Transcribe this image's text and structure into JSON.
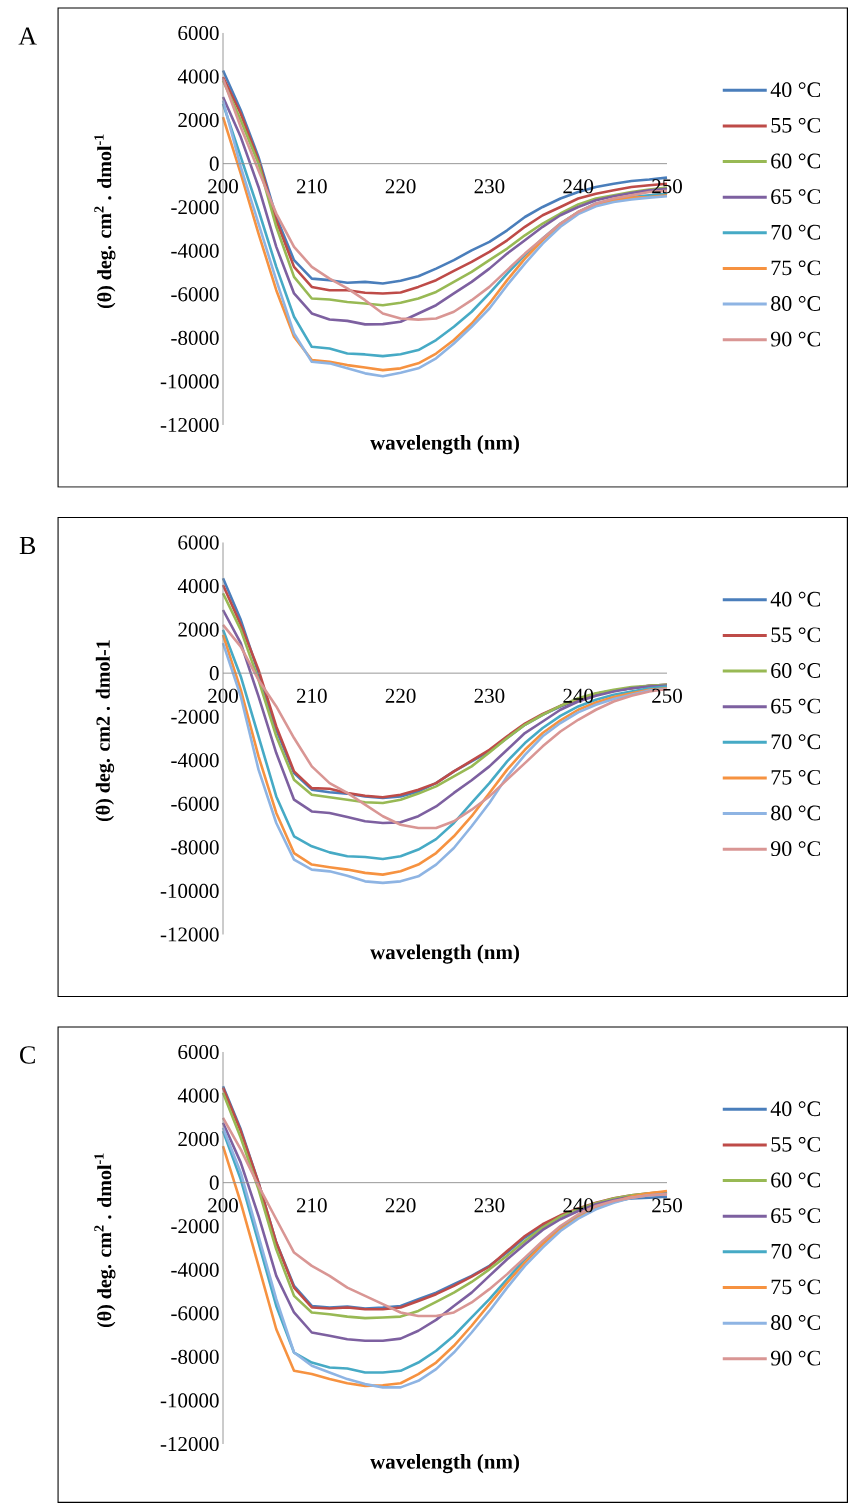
{
  "chart_data": [
    {
      "type": "line",
      "title": "A",
      "xlabel": "wavelength (nm)",
      "ylabel": "(θ) deg. cm$^{2}$ . dmol$^{-1}$",
      "legend": "right",
      "x": [
        200,
        202,
        204,
        206,
        208,
        210,
        212,
        214,
        216,
        218,
        220,
        222,
        224,
        226,
        228,
        230,
        232,
        234,
        236,
        238,
        240,
        242,
        244,
        246,
        248,
        250
      ],
      "xlim": [
        200,
        250
      ],
      "xticks": [
        200,
        210,
        220,
        230,
        240,
        250
      ],
      "ylim": [
        -12000,
        6000
      ],
      "yticks": [
        -12000,
        -10000,
        -8000,
        -6000,
        -4000,
        -2000,
        0,
        2000,
        4000,
        6000
      ],
      "series": [
        {
          "name": "40 °C",
          "color": "#4a7ebb",
          "values": [
            4280,
            2450,
            300,
            -2450,
            -4430,
            -5280,
            -5350,
            -5470,
            -5430,
            -5500,
            -5380,
            -5170,
            -4820,
            -4430,
            -3980,
            -3590,
            -3060,
            -2450,
            -1990,
            -1600,
            -1300,
            -1070,
            -920,
            -800,
            -730,
            -640
          ]
        },
        {
          "name": "55 °C",
          "color": "#be4b48",
          "values": [
            3980,
            2290,
            150,
            -2600,
            -4740,
            -5660,
            -5810,
            -5810,
            -5930,
            -5960,
            -5920,
            -5660,
            -5350,
            -4920,
            -4510,
            -4050,
            -3520,
            -2900,
            -2370,
            -1990,
            -1600,
            -1380,
            -1220,
            -1070,
            -990,
            -920
          ]
        },
        {
          "name": "60 °C",
          "color": "#98b954",
          "values": [
            3820,
            1990,
            0,
            -2900,
            -5200,
            -6190,
            -6240,
            -6350,
            -6420,
            -6500,
            -6390,
            -6190,
            -5890,
            -5430,
            -4970,
            -4430,
            -3900,
            -3290,
            -2750,
            -2290,
            -1870,
            -1600,
            -1450,
            -1300,
            -1190,
            -1100
          ]
        },
        {
          "name": "65 °C",
          "color": "#7d60a0",
          "values": [
            3060,
            1220,
            -1070,
            -3820,
            -5960,
            -6880,
            -7160,
            -7220,
            -7380,
            -7370,
            -7260,
            -6880,
            -6500,
            -5960,
            -5430,
            -4820,
            -4130,
            -3520,
            -2900,
            -2370,
            -1990,
            -1680,
            -1500,
            -1350,
            -1220,
            -1150
          ]
        },
        {
          "name": "70 °C",
          "color": "#46aac5",
          "values": [
            2750,
            310,
            -2140,
            -4740,
            -7030,
            -8410,
            -8490,
            -8720,
            -8760,
            -8840,
            -8750,
            -8560,
            -8100,
            -7490,
            -6800,
            -5960,
            -5050,
            -4200,
            -3440,
            -2750,
            -2220,
            -1830,
            -1650,
            -1530,
            -1450,
            -1380
          ]
        },
        {
          "name": "75 °C",
          "color": "#f69240",
          "values": [
            2140,
            -460,
            -3210,
            -5810,
            -7950,
            -9020,
            -9100,
            -9250,
            -9360,
            -9480,
            -9400,
            -9170,
            -8720,
            -8100,
            -7340,
            -6420,
            -5350,
            -4360,
            -3520,
            -2780,
            -2220,
            -1870,
            -1680,
            -1560,
            -1530,
            -1450
          ]
        },
        {
          "name": "80 °C",
          "color": "#8eb4e3",
          "values": [
            2900,
            -150,
            -2750,
            -5350,
            -7800,
            -9100,
            -9170,
            -9400,
            -9630,
            -9760,
            -9600,
            -9400,
            -8940,
            -8260,
            -7490,
            -6650,
            -5580,
            -4590,
            -3670,
            -2900,
            -2320,
            -1960,
            -1760,
            -1650,
            -1560,
            -1500
          ]
        },
        {
          "name": "90 °C",
          "color": "#d99694",
          "values": [
            3900,
            1680,
            -310,
            -2290,
            -3820,
            -4740,
            -5280,
            -5730,
            -6270,
            -6880,
            -7110,
            -7160,
            -7110,
            -6800,
            -6270,
            -5660,
            -4890,
            -4130,
            -3440,
            -2750,
            -2220,
            -1830,
            -1600,
            -1450,
            -1300,
            -1250
          ]
        }
      ]
    },
    {
      "type": "line",
      "title": "B",
      "xlabel": "wavelength (nm)",
      "ylabel": "(θ) deg. cm2 . dmol-1",
      "legend": "right",
      "x": [
        200,
        202,
        204,
        206,
        208,
        210,
        212,
        214,
        216,
        218,
        220,
        222,
        224,
        226,
        228,
        230,
        232,
        234,
        236,
        238,
        240,
        242,
        244,
        246,
        248,
        250
      ],
      "xlim": [
        200,
        250
      ],
      "xticks": [
        200,
        210,
        220,
        230,
        240,
        250
      ],
      "ylim": [
        -12000,
        6000
      ],
      "yticks": [
        -12000,
        -10000,
        -8000,
        -6000,
        -4000,
        -2000,
        0,
        2000,
        4000,
        6000
      ],
      "series": [
        {
          "name": "40 °C",
          "color": "#4a7ebb",
          "values": [
            4360,
            2450,
            0,
            -2600,
            -4590,
            -5350,
            -5470,
            -5530,
            -5660,
            -5730,
            -5660,
            -5430,
            -5050,
            -4510,
            -4050,
            -3590,
            -2980,
            -2370,
            -1910,
            -1530,
            -1220,
            -950,
            -800,
            -690,
            -580,
            -540
          ]
        },
        {
          "name": "55 °C",
          "color": "#be4b48",
          "values": [
            4050,
            2220,
            150,
            -2450,
            -4510,
            -5280,
            -5310,
            -5500,
            -5630,
            -5700,
            -5580,
            -5350,
            -5050,
            -4510,
            -4020,
            -3520,
            -2900,
            -2320,
            -1870,
            -1500,
            -1190,
            -950,
            -800,
            -690,
            -580,
            -540
          ]
        },
        {
          "name": "60 °C",
          "color": "#98b954",
          "values": [
            3670,
            1990,
            -310,
            -2900,
            -4890,
            -5580,
            -5700,
            -5810,
            -5930,
            -5960,
            -5810,
            -5530,
            -5200,
            -4740,
            -4280,
            -3640,
            -2980,
            -2370,
            -1910,
            -1500,
            -1150,
            -920,
            -760,
            -640,
            -580,
            -540
          ]
        },
        {
          "name": "65 °C",
          "color": "#7d60a0",
          "values": [
            2900,
            1380,
            -1070,
            -3670,
            -5810,
            -6350,
            -6420,
            -6610,
            -6800,
            -6880,
            -6850,
            -6570,
            -6120,
            -5500,
            -4920,
            -4280,
            -3520,
            -2750,
            -2220,
            -1680,
            -1300,
            -1040,
            -840,
            -690,
            -610,
            -570
          ]
        },
        {
          "name": "70 °C",
          "color": "#46aac5",
          "values": [
            1990,
            -150,
            -2900,
            -5660,
            -7490,
            -7950,
            -8230,
            -8410,
            -8440,
            -8530,
            -8410,
            -8100,
            -7620,
            -6880,
            -5960,
            -5050,
            -4050,
            -3210,
            -2520,
            -1960,
            -1530,
            -1220,
            -990,
            -840,
            -690,
            -610
          ]
        },
        {
          "name": "75 °C",
          "color": "#f69240",
          "values": [
            1760,
            -760,
            -3820,
            -6420,
            -8260,
            -8790,
            -8910,
            -9020,
            -9170,
            -9250,
            -9100,
            -8790,
            -8260,
            -7490,
            -6570,
            -5500,
            -4430,
            -3520,
            -2750,
            -2170,
            -1680,
            -1350,
            -1100,
            -920,
            -760,
            -690
          ]
        },
        {
          "name": "80 °C",
          "color": "#8eb4e3",
          "values": [
            1380,
            -1070,
            -4430,
            -6880,
            -8560,
            -9020,
            -9100,
            -9300,
            -9560,
            -9630,
            -9560,
            -9330,
            -8790,
            -8030,
            -7030,
            -5960,
            -4740,
            -3750,
            -2900,
            -2290,
            -1800,
            -1450,
            -1190,
            -990,
            -800,
            -720
          ]
        },
        {
          "name": "90 °C",
          "color": "#d99694",
          "values": [
            2220,
            1220,
            -310,
            -1530,
            -2980,
            -4280,
            -5050,
            -5500,
            -6040,
            -6570,
            -6960,
            -7110,
            -7110,
            -6800,
            -6270,
            -5660,
            -4890,
            -4130,
            -3360,
            -2680,
            -2140,
            -1680,
            -1300,
            -1040,
            -840,
            -730
          ]
        }
      ]
    },
    {
      "type": "line",
      "title": "C",
      "xlabel": "wavelength (nm)",
      "ylabel": "(θ) deg. cm$^{2}$ . dmol$^{-1}$",
      "legend": "right",
      "x": [
        200,
        202,
        204,
        206,
        208,
        210,
        212,
        214,
        216,
        218,
        220,
        222,
        224,
        226,
        228,
        230,
        232,
        234,
        236,
        238,
        240,
        242,
        244,
        246,
        248,
        250
      ],
      "xlim": [
        200,
        250
      ],
      "xticks": [
        200,
        210,
        220,
        230,
        240,
        250
      ],
      "ylim": [
        -12000,
        6000
      ],
      "yticks": [
        -12000,
        -10000,
        -8000,
        -6000,
        -4000,
        -2000,
        0,
        2000,
        4000,
        6000
      ],
      "series": [
        {
          "name": "40 °C",
          "color": "#4a7ebb",
          "values": [
            4430,
            2450,
            0,
            -2750,
            -4740,
            -5660,
            -5730,
            -5690,
            -5780,
            -5730,
            -5660,
            -5350,
            -5050,
            -4660,
            -4280,
            -3820,
            -3210,
            -2520,
            -1990,
            -1530,
            -1220,
            -950,
            -800,
            -720,
            -690,
            -640
          ]
        },
        {
          "name": "55 °C",
          "color": "#be4b48",
          "values": [
            4360,
            2370,
            0,
            -2750,
            -4820,
            -5730,
            -5780,
            -5730,
            -5810,
            -5810,
            -5730,
            -5430,
            -5120,
            -4740,
            -4310,
            -3850,
            -3140,
            -2450,
            -1910,
            -1500,
            -1190,
            -920,
            -720,
            -580,
            -490,
            -430
          ]
        },
        {
          "name": "60 °C",
          "color": "#98b954",
          "values": [
            4130,
            2060,
            -310,
            -3060,
            -5200,
            -5960,
            -6040,
            -6150,
            -6220,
            -6190,
            -6150,
            -5890,
            -5470,
            -5050,
            -4560,
            -3980,
            -3360,
            -2680,
            -2060,
            -1560,
            -1220,
            -950,
            -730,
            -580,
            -490,
            -430
          ]
        },
        {
          "name": "65 °C",
          "color": "#7d60a0",
          "values": [
            2750,
            920,
            -1530,
            -4280,
            -5960,
            -6880,
            -7030,
            -7190,
            -7260,
            -7260,
            -7160,
            -6800,
            -6300,
            -5660,
            -5050,
            -4280,
            -3520,
            -2830,
            -2170,
            -1680,
            -1300,
            -990,
            -800,
            -640,
            -540,
            -460
          ]
        },
        {
          "name": "70 °C",
          "color": "#46aac5",
          "values": [
            2370,
            150,
            -2750,
            -5660,
            -7800,
            -8260,
            -8490,
            -8530,
            -8720,
            -8720,
            -8640,
            -8260,
            -7720,
            -7030,
            -6190,
            -5350,
            -4430,
            -3520,
            -2750,
            -2060,
            -1530,
            -1150,
            -890,
            -690,
            -580,
            -490
          ]
        },
        {
          "name": "75 °C",
          "color": "#f69240",
          "values": [
            1680,
            -920,
            -3820,
            -6730,
            -8640,
            -8790,
            -9020,
            -9210,
            -9330,
            -9300,
            -9210,
            -8790,
            -8260,
            -7490,
            -6570,
            -5580,
            -4590,
            -3670,
            -2830,
            -2140,
            -1600,
            -1190,
            -890,
            -640,
            -490,
            -380
          ]
        },
        {
          "name": "80 °C",
          "color": "#8eb4e3",
          "values": [
            2520,
            460,
            -2450,
            -5350,
            -7800,
            -8410,
            -8720,
            -9020,
            -9250,
            -9400,
            -9400,
            -9100,
            -8560,
            -7800,
            -6880,
            -5890,
            -4820,
            -3820,
            -2980,
            -2220,
            -1650,
            -1220,
            -920,
            -690,
            -580,
            -540
          ]
        },
        {
          "name": "90 °C",
          "color": "#d99694",
          "values": [
            2980,
            1530,
            -150,
            -1680,
            -3210,
            -3820,
            -4280,
            -4820,
            -5200,
            -5580,
            -5960,
            -6120,
            -6120,
            -5960,
            -5500,
            -4890,
            -4200,
            -3440,
            -2680,
            -1990,
            -1450,
            -1070,
            -840,
            -690,
            -580,
            -540
          ]
        }
      ]
    }
  ]
}
